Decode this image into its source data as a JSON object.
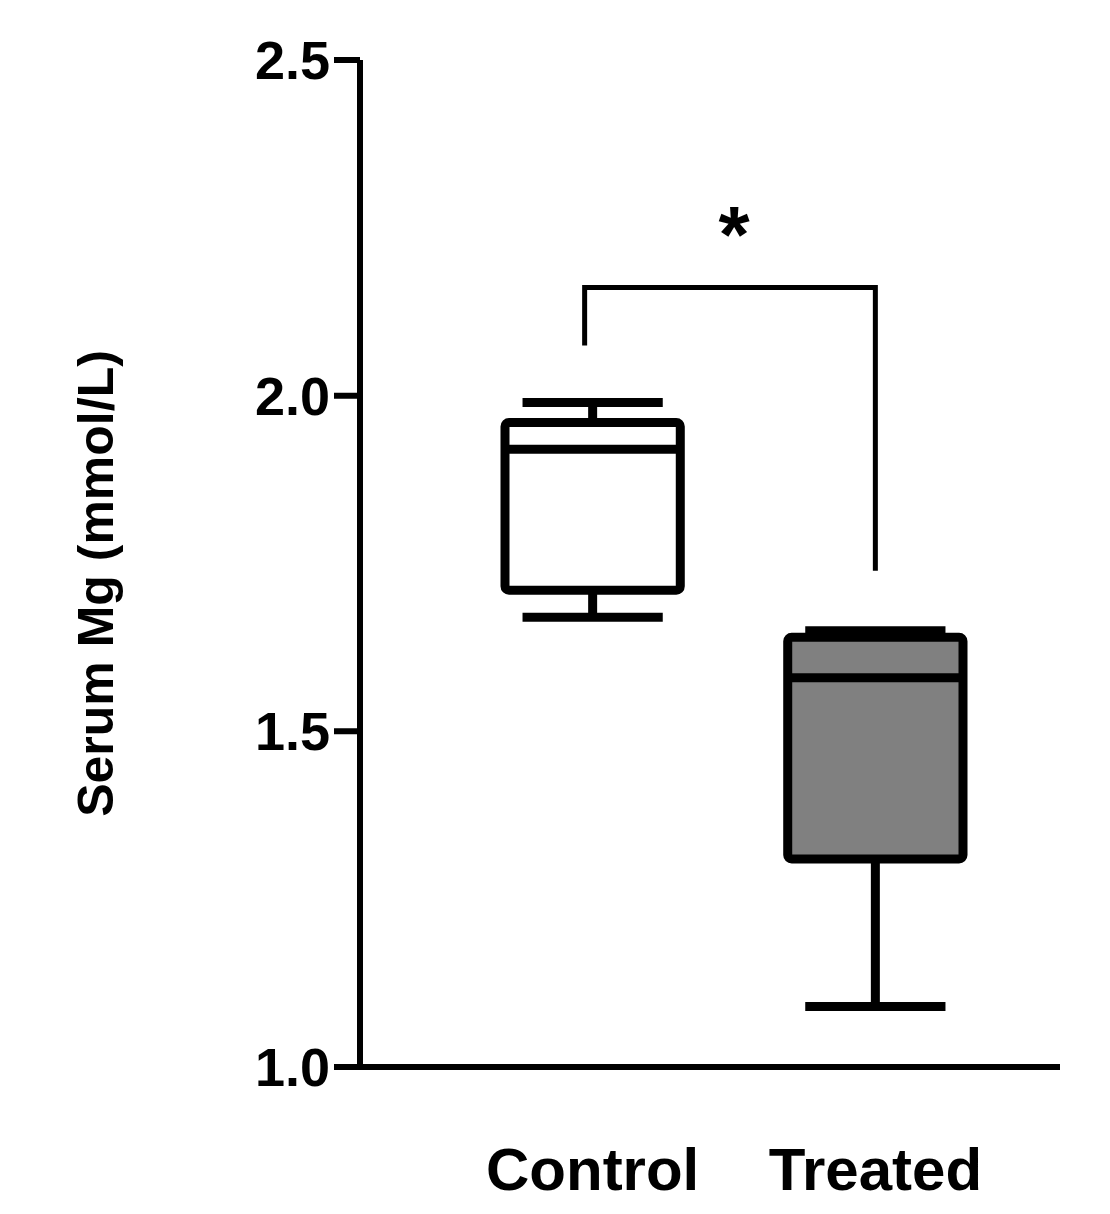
{
  "chart_data": {
    "type": "box",
    "ylabel": "Serum Mg (mmol/L)",
    "categories": [
      "Control",
      "Treated"
    ],
    "boxes": [
      {
        "low": 1.67,
        "q1": 1.71,
        "median": 1.92,
        "q3": 1.96,
        "high": 1.99
      },
      {
        "low": 1.09,
        "q1": 1.31,
        "median": 1.58,
        "q3": 1.64,
        "high": 1.65
      }
    ],
    "colors": [
      "#ffffff",
      "#808080"
    ],
    "ylim": [
      1.0,
      2.5
    ],
    "yticks": [
      {
        "value": 1,
        "label": "1.0"
      },
      1.5,
      {
        "value": 2,
        "label": "2.0"
      },
      2.5
    ],
    "annotations": [
      "*"
    ],
    "grid": false,
    "legend": false
  }
}
